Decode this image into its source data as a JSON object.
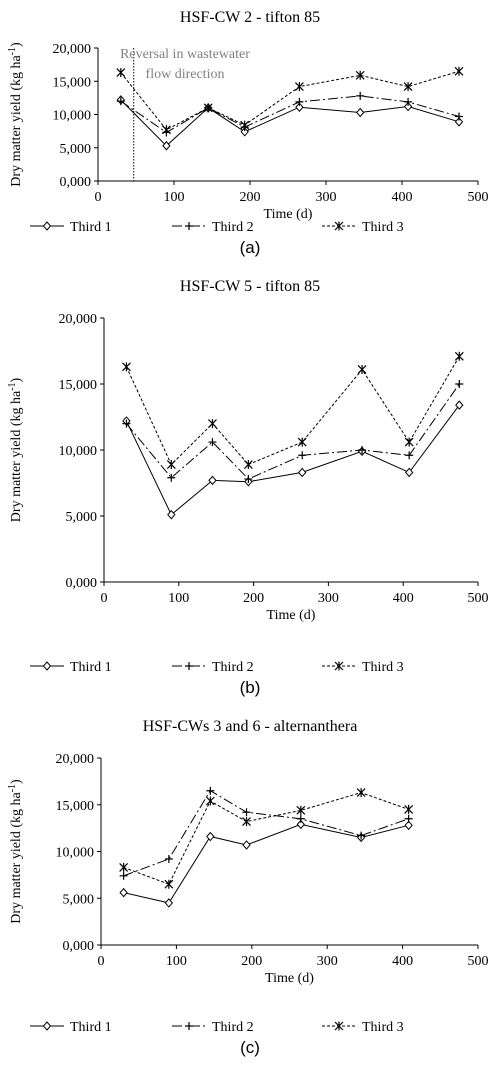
{
  "chart_data": [
    {
      "type": "line",
      "title": "HSF-CW 2 - tifton 85",
      "xlabel": "Time (d)",
      "ylabel": "Dry matter yield (kg ha-1)",
      "xlim": [
        0,
        500
      ],
      "ylim": [
        0,
        20000
      ],
      "xticks": [
        0,
        100,
        200,
        300,
        400,
        500
      ],
      "xtick_labels": [
        "0",
        "100",
        "200",
        "300",
        "400",
        "500"
      ],
      "yticks": [
        0,
        5000,
        10000,
        15000,
        20000
      ],
      "ytick_labels": [
        "0,000",
        "5,000",
        "10,000",
        "15,000",
        "20,000"
      ],
      "legend_position": "bottom",
      "panel_label": "(a)",
      "annotation": {
        "lines": [
          "Reversal in wastewater",
          "flow direction"
        ],
        "x": 47
      },
      "series": [
        {
          "name": "Third 1",
          "x": [
            30,
            90,
            145,
            193,
            265,
            345,
            408,
            475
          ],
          "values": [
            12200,
            5300,
            11000,
            7400,
            11100,
            10300,
            11200,
            8900
          ]
        },
        {
          "name": "Third 2",
          "x": [
            30,
            90,
            145,
            193,
            265,
            345,
            408,
            475
          ],
          "values": [
            12000,
            7300,
            11000,
            8100,
            11900,
            12800,
            11900,
            9700
          ]
        },
        {
          "name": "Third 3",
          "x": [
            30,
            90,
            145,
            193,
            265,
            345,
            408,
            475
          ],
          "values": [
            16300,
            7700,
            11000,
            8400,
            14200,
            15900,
            14200,
            16500
          ]
        }
      ]
    },
    {
      "type": "line",
      "title": "HSF-CW 5 - tifton 85",
      "xlabel": "Time (d)",
      "ylabel": "Dry matter yield (kg ha-1)",
      "xlim": [
        0,
        500
      ],
      "ylim": [
        0,
        20000
      ],
      "xticks": [
        0,
        100,
        200,
        300,
        400,
        500
      ],
      "xtick_labels": [
        "0",
        "100",
        "200",
        "300",
        "400",
        "500"
      ],
      "yticks": [
        0,
        5000,
        10000,
        15000,
        20000
      ],
      "ytick_labels": [
        "0,000",
        "5,000",
        "10,000",
        "15,000",
        "20,000"
      ],
      "legend_position": "bottom",
      "panel_label": "(b)",
      "series": [
        {
          "name": "Third 1",
          "x": [
            30,
            90,
            145,
            193,
            265,
            345,
            408,
            475
          ],
          "values": [
            12200,
            5100,
            7700,
            7600,
            8300,
            9900,
            8300,
            13400
          ]
        },
        {
          "name": "Third 2",
          "x": [
            30,
            90,
            145,
            193,
            265,
            345,
            408,
            475
          ],
          "values": [
            12000,
            7900,
            10600,
            7800,
            9600,
            10000,
            9600,
            15000
          ]
        },
        {
          "name": "Third 3",
          "x": [
            30,
            90,
            145,
            193,
            265,
            345,
            408,
            475
          ],
          "values": [
            16300,
            8900,
            12000,
            8900,
            10600,
            16100,
            10600,
            17100
          ]
        }
      ]
    },
    {
      "type": "line",
      "title": "HSF-CWs 3 and 6 - alternanthera",
      "xlabel": "Time (d)",
      "ylabel": "Dry matter yield (kg ha-1)",
      "xlim": [
        0,
        500
      ],
      "ylim": [
        0,
        20000
      ],
      "xticks": [
        0,
        100,
        200,
        300,
        400,
        500
      ],
      "xtick_labels": [
        "0",
        "100",
        "200",
        "300",
        "400",
        "500"
      ],
      "yticks": [
        0,
        5000,
        10000,
        15000,
        20000
      ],
      "ytick_labels": [
        "0,000",
        "5,000",
        "10,000",
        "15,000",
        "20,000"
      ],
      "legend_position": "bottom",
      "panel_label": "(c)",
      "series": [
        {
          "name": "Third 1",
          "x": [
            30,
            90,
            145,
            193,
            265,
            345,
            408
          ],
          "values": [
            5600,
            4500,
            11600,
            10700,
            12900,
            11500,
            12800
          ]
        },
        {
          "name": "Third 2",
          "x": [
            30,
            90,
            145,
            193,
            265,
            345,
            408
          ],
          "values": [
            7400,
            9200,
            16500,
            14200,
            13500,
            11700,
            13500
          ]
        },
        {
          "name": "Third 3",
          "x": [
            30,
            90,
            145,
            193,
            265,
            345,
            408
          ],
          "values": [
            8300,
            6500,
            15400,
            13200,
            14400,
            16300,
            14500
          ]
        }
      ]
    }
  ]
}
